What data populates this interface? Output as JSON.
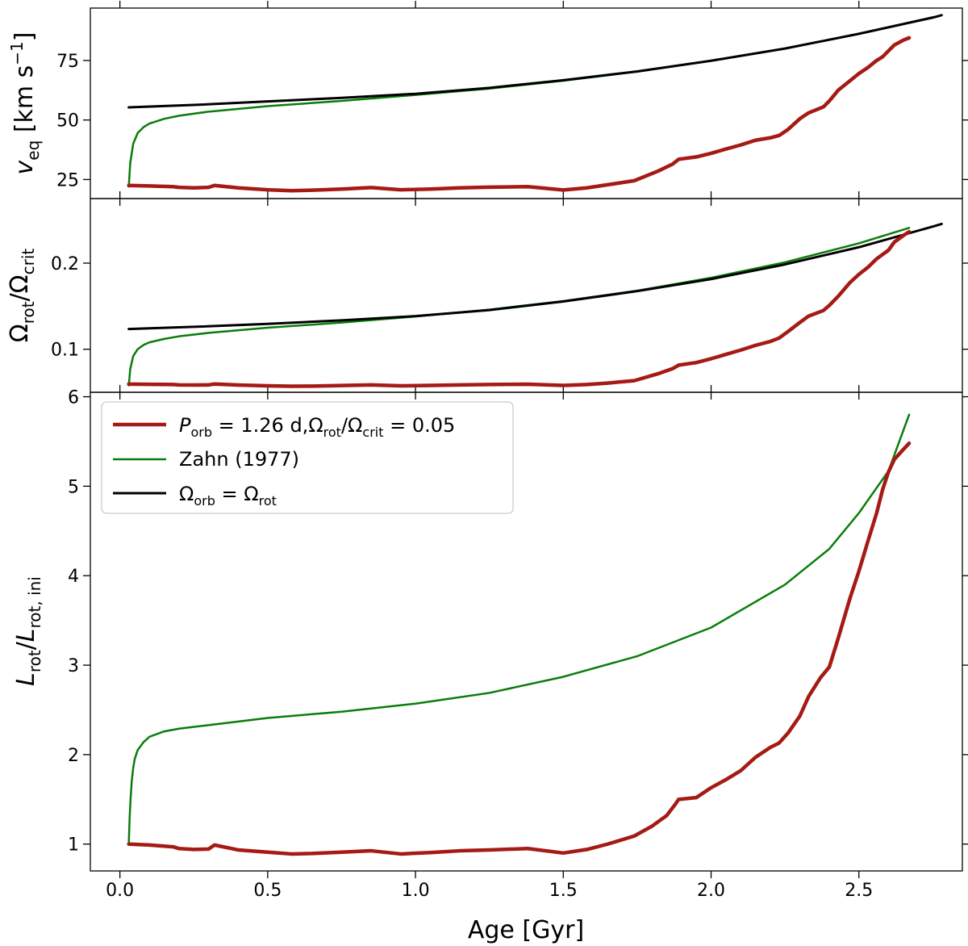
{
  "chart_data": {
    "type": "line",
    "x_axis": {
      "label": "Age [Gyr]",
      "range": [
        -0.1,
        2.85
      ],
      "ticks": [
        0.0,
        0.5,
        1.0,
        1.5,
        2.0,
        2.5
      ],
      "tick_labels": [
        "0.0",
        "0.5",
        "1.0",
        "1.5",
        "2.0",
        "2.5"
      ]
    },
    "legend": {
      "placement": "upper-left",
      "entries": [
        {
          "series": "obs",
          "label": "P_orb = 1.26 d, Ω_rot/Ω_crit = 0.05"
        },
        {
          "series": "zahn",
          "label": "Zahn (1977)"
        },
        {
          "series": "sync",
          "label": "Ω_orb = Ω_rot"
        }
      ]
    },
    "series_styles": {
      "obs": {
        "color": "#a51a14",
        "width": 4.5
      },
      "zahn": {
        "color": "#0a7d0a",
        "width": 2.5
      },
      "sync": {
        "color": "#000000",
        "width": 3
      }
    },
    "panels": [
      {
        "name": "veq",
        "ylabel": "v_eq [km s^-1]",
        "ylim": [
          17,
          97
        ],
        "yticks": [
          25,
          50,
          75
        ],
        "ytick_labels": [
          "25",
          "50",
          "75"
        ],
        "series": {
          "obs": {
            "x": [
              0.03,
              0.1,
              0.18,
              0.2,
              0.25,
              0.3,
              0.32,
              0.4,
              0.5,
              0.58,
              0.65,
              0.75,
              0.85,
              0.95,
              1.05,
              1.15,
              1.25,
              1.38,
              1.5,
              1.58,
              1.65,
              1.74,
              1.82,
              1.87,
              1.89,
              1.95,
              2.0,
              2.05,
              2.1,
              2.15,
              2.2,
              2.23,
              2.26,
              2.3,
              2.33,
              2.38,
              2.4,
              2.43,
              2.47,
              2.5,
              2.53,
              2.56,
              2.58,
              2.6,
              2.62,
              2.65,
              2.67
            ],
            "y": [
              22.5,
              22.3,
              22.0,
              21.7,
              21.5,
              21.7,
              22.5,
              21.5,
              20.7,
              20.3,
              20.5,
              21.0,
              21.6,
              20.7,
              21.0,
              21.5,
              21.8,
              22.0,
              20.6,
              21.5,
              22.8,
              24.5,
              28.5,
              31.5,
              33.5,
              34.5,
              36.0,
              37.8,
              39.5,
              41.5,
              42.5,
              43.5,
              46.0,
              50.5,
              53.0,
              55.5,
              58.0,
              62.5,
              66.5,
              69.5,
              72.0,
              75.0,
              76.5,
              79.0,
              81.5,
              83.5,
              84.5
            ]
          },
          "zahn": {
            "x": [
              0.03,
              0.035,
              0.045,
              0.06,
              0.08,
              0.1,
              0.15,
              0.2,
              0.3,
              0.5,
              0.75,
              1.0,
              1.25,
              1.5,
              1.75,
              2.0,
              2.25,
              2.5,
              2.75
            ],
            "y": [
              22,
              32,
              40,
              44.5,
              47,
              48.5,
              50.5,
              51.8,
              53.5,
              55.8,
              58.0,
              60.5,
              63.2,
              66.5,
              70.3,
              74.8,
              80.0,
              86.2,
              93.2
            ]
          },
          "sync": {
            "x": [
              0.03,
              0.25,
              0.5,
              0.75,
              1.0,
              1.25,
              1.5,
              1.75,
              2.0,
              2.25,
              2.5,
              2.75,
              2.78
            ],
            "y": [
              55.3,
              56.3,
              57.8,
              59.3,
              61.0,
              63.5,
              66.7,
              70.4,
              74.9,
              80.0,
              86.2,
              93.0,
              94.0
            ]
          }
        }
      },
      {
        "name": "omega",
        "ylabel": "Ω_rot / Ω_crit",
        "ylim": [
          0.05,
          0.275
        ],
        "yticks": [
          0.1,
          0.2
        ],
        "ytick_labels": [
          "0.1",
          "0.2"
        ],
        "series": {
          "obs": {
            "x": [
              0.03,
              0.1,
              0.18,
              0.2,
              0.25,
              0.3,
              0.32,
              0.4,
              0.5,
              0.58,
              0.65,
              0.75,
              0.85,
              0.95,
              1.05,
              1.15,
              1.25,
              1.38,
              1.5,
              1.58,
              1.65,
              1.74,
              1.82,
              1.87,
              1.89,
              1.95,
              2.0,
              2.05,
              2.1,
              2.15,
              2.2,
              2.23,
              2.26,
              2.3,
              2.33,
              2.38,
              2.4,
              2.43,
              2.47,
              2.5,
              2.53,
              2.56,
              2.58,
              2.6,
              2.62,
              2.65,
              2.67
            ],
            "y": [
              0.0595,
              0.0593,
              0.059,
              0.0586,
              0.0584,
              0.0586,
              0.0596,
              0.0584,
              0.0575,
              0.057,
              0.0572,
              0.0578,
              0.0585,
              0.0575,
              0.058,
              0.0586,
              0.059,
              0.0594,
              0.058,
              0.059,
              0.0607,
              0.0635,
              0.0715,
              0.0775,
              0.0815,
              0.0845,
              0.089,
              0.094,
              0.099,
              0.1045,
              0.109,
              0.113,
              0.1205,
              0.131,
              0.1385,
              0.145,
              0.151,
              0.1615,
              0.1775,
              0.187,
              0.195,
              0.205,
              0.21,
              0.215,
              0.2245,
              0.232,
              0.2365
            ]
          },
          "zahn": {
            "x": [
              0.03,
              0.035,
              0.045,
              0.06,
              0.08,
              0.1,
              0.15,
              0.2,
              0.3,
              0.5,
              0.75,
              1.0,
              1.25,
              1.5,
              1.75,
              2.0,
              2.25,
              2.5,
              2.67
            ],
            "y": [
              0.058,
              0.077,
              0.092,
              0.1,
              0.105,
              0.108,
              0.112,
              0.115,
              0.119,
              0.125,
              0.131,
              0.138,
              0.146,
              0.156,
              0.168,
              0.183,
              0.201,
              0.223,
              0.241
            ]
          },
          "sync": {
            "x": [
              0.03,
              0.25,
              0.5,
              0.75,
              1.0,
              1.25,
              1.5,
              1.75,
              2.0,
              2.25,
              2.5,
              2.75,
              2.78
            ],
            "y": [
              0.1235,
              0.126,
              0.1295,
              0.1335,
              0.1385,
              0.1455,
              0.1555,
              0.1675,
              0.1815,
              0.1985,
              0.2185,
              0.2425,
              0.2455
            ]
          }
        }
      },
      {
        "name": "L",
        "ylabel": "L_rot / L_rot, ini",
        "ylim": [
          0.7,
          6.05
        ],
        "yticks": [
          1,
          2,
          3,
          4,
          5,
          6
        ],
        "ytick_labels": [
          "1",
          "2",
          "3",
          "4",
          "5",
          "6"
        ],
        "series": {
          "obs": {
            "x": [
              0.03,
              0.1,
              0.18,
              0.2,
              0.25,
              0.3,
              0.32,
              0.4,
              0.5,
              0.58,
              0.65,
              0.75,
              0.85,
              0.95,
              1.05,
              1.15,
              1.25,
              1.38,
              1.5,
              1.58,
              1.65,
              1.74,
              1.8,
              1.85,
              1.88,
              1.89,
              1.95,
              2.0,
              2.05,
              2.1,
              2.15,
              2.2,
              2.23,
              2.26,
              2.3,
              2.33,
              2.37,
              2.4,
              2.43,
              2.47,
              2.5,
              2.53,
              2.56,
              2.58,
              2.6,
              2.62,
              2.65,
              2.67
            ],
            "y": [
              1.0,
              0.99,
              0.97,
              0.95,
              0.94,
              0.945,
              0.99,
              0.935,
              0.91,
              0.89,
              0.895,
              0.91,
              0.925,
              0.89,
              0.905,
              0.925,
              0.935,
              0.95,
              0.9,
              0.94,
              1.0,
              1.09,
              1.2,
              1.32,
              1.45,
              1.5,
              1.52,
              1.63,
              1.72,
              1.82,
              1.97,
              2.08,
              2.13,
              2.24,
              2.43,
              2.65,
              2.86,
              2.98,
              3.3,
              3.75,
              4.05,
              4.38,
              4.7,
              4.96,
              5.16,
              5.3,
              5.41,
              5.48
            ]
          },
          "zahn": {
            "x": [
              0.03,
              0.033,
              0.036,
              0.04,
              0.045,
              0.05,
              0.06,
              0.08,
              0.1,
              0.15,
              0.2,
              0.3,
              0.5,
              0.75,
              1.0,
              1.25,
              1.5,
              1.75,
              2.0,
              2.25,
              2.4,
              2.5,
              2.6,
              2.67
            ],
            "y": [
              1.0,
              1.3,
              1.5,
              1.7,
              1.85,
              1.95,
              2.05,
              2.14,
              2.2,
              2.26,
              2.29,
              2.33,
              2.41,
              2.48,
              2.57,
              2.69,
              2.87,
              3.1,
              3.42,
              3.9,
              4.3,
              4.7,
              5.17,
              5.8
            ]
          }
        }
      }
    ]
  }
}
